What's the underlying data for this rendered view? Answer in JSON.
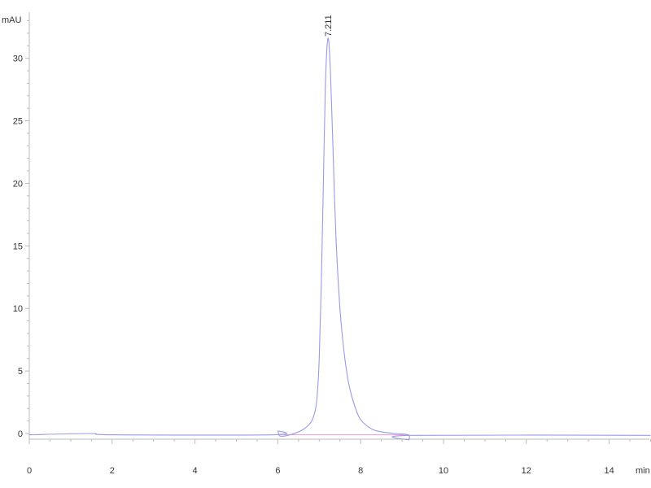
{
  "chart_data": {
    "type": "line",
    "ylabel": "mAU",
    "xlabel": "min",
    "xlim": [
      0,
      15
    ],
    "ylim": [
      -0.4,
      33.5
    ],
    "x_ticks": [
      "0",
      "2",
      "4",
      "6",
      "8",
      "10",
      "12",
      "14"
    ],
    "y_ticks": [
      "0",
      "5",
      "10",
      "15",
      "20",
      "25",
      "30"
    ],
    "grid": false,
    "series_color": "#9a9ae6",
    "baseline_color": "#f0a0e0",
    "peak_annotations": [
      {
        "x": 7.211,
        "y": 31.6,
        "label": "7.211"
      }
    ],
    "integration_baseline": [
      [
        6.0,
        -0.1
      ],
      [
        9.15,
        -0.1
      ]
    ],
    "points": [
      [
        0,
        -0.1
      ],
      [
        1.5,
        0
      ],
      [
        2,
        -0.1
      ],
      [
        5.9,
        -0.1
      ],
      [
        6.0,
        0.2
      ],
      [
        6.05,
        -0.2
      ],
      [
        6.3,
        -0.1
      ],
      [
        6.6,
        0.3
      ],
      [
        6.8,
        0.9
      ],
      [
        6.9,
        1.8
      ],
      [
        6.95,
        3
      ],
      [
        7.0,
        6
      ],
      [
        7.05,
        12
      ],
      [
        7.1,
        20
      ],
      [
        7.15,
        28
      ],
      [
        7.211,
        31.6
      ],
      [
        7.27,
        29
      ],
      [
        7.33,
        23
      ],
      [
        7.4,
        16
      ],
      [
        7.5,
        10
      ],
      [
        7.6,
        6.5
      ],
      [
        7.7,
        4.2
      ],
      [
        7.8,
        2.8
      ],
      [
        7.9,
        1.8
      ],
      [
        8.0,
        1.1
      ],
      [
        8.2,
        0.5
      ],
      [
        8.4,
        0.2
      ],
      [
        8.8,
        0
      ],
      [
        9.15,
        -0.1
      ],
      [
        9.17,
        -0.5
      ],
      [
        9.2,
        -0.15
      ],
      [
        15,
        -0.15
      ]
    ]
  }
}
